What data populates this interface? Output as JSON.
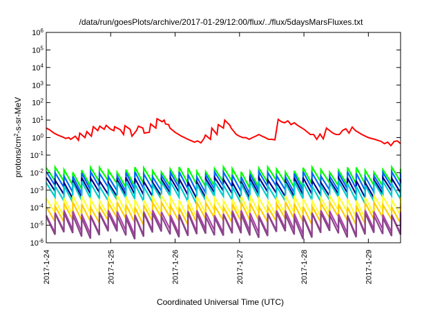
{
  "chart_data": {
    "type": "line",
    "title": "/data/run/goesPlots/archive/2017-01-29/12:00/flux/../flux/5daysMarsFluxes.txt",
    "xlabel": "Coordinated Universal Time (UTC)",
    "ylabel": {
      "base": "protons/cm",
      "sup": "2",
      "rest": "-s-sr-MeV"
    },
    "xlim": [
      0,
      5.5
    ],
    "ylim": [
      1e-06,
      1000000.0
    ],
    "yscale": "log",
    "grid": false,
    "xticks": [
      {
        "x": 0,
        "label": "2017-1-24"
      },
      {
        "x": 1,
        "label": "2017-1-25"
      },
      {
        "x": 2,
        "label": "2017-1-26"
      },
      {
        "x": 3,
        "label": "2017-1-27"
      },
      {
        "x": 4,
        "label": "2017-1-28"
      },
      {
        "x": 5,
        "label": "2017-1-29"
      }
    ],
    "yticks": [
      {
        "exp": -6
      },
      {
        "exp": -5
      },
      {
        "exp": -4
      },
      {
        "exp": -3
      },
      {
        "exp": -2
      },
      {
        "exp": -1
      },
      {
        "exp": 0
      },
      {
        "exp": 1
      },
      {
        "exp": 2
      },
      {
        "exp": 3
      },
      {
        "exp": 4
      },
      {
        "exp": 5
      },
      {
        "exp": 6
      }
    ],
    "series": [
      {
        "color": "#ff0000",
        "x": [
          0,
          0.05,
          0.12,
          0.18,
          0.25,
          0.3,
          0.35,
          0.38,
          0.45,
          0.5,
          0.52,
          0.6,
          0.63,
          0.7,
          0.73,
          0.8,
          0.83,
          0.9,
          0.93,
          1.0,
          1.05,
          1.06,
          1.15,
          1.2,
          1.22,
          1.3,
          1.33,
          1.4,
          1.43,
          1.5,
          1.52,
          1.6,
          1.62,
          1.7,
          1.72,
          1.8,
          1.83,
          1.85,
          1.9,
          1.92,
          2.0,
          2.1,
          2.2,
          2.3,
          2.35,
          2.4,
          2.45,
          2.47,
          2.55,
          2.57,
          2.65,
          2.67,
          2.75,
          2.77,
          2.85,
          2.87,
          2.95,
          3.0,
          3.05,
          3.1,
          3.15,
          3.2,
          3.25,
          3.3,
          3.35,
          3.4,
          3.45,
          3.5,
          3.55,
          3.6,
          3.65,
          3.7,
          3.75,
          3.8,
          3.85,
          3.9,
          4.0,
          4.1,
          4.15,
          4.2,
          4.25,
          4.3,
          4.35,
          4.4,
          4.45,
          4.5,
          4.55,
          4.6,
          4.65,
          4.7,
          4.75,
          4.8,
          4.9,
          5.0,
          5.1,
          5.2,
          5.25,
          5.3,
          5.35,
          5.4,
          5.45,
          5.5
        ],
        "y": [
          3.5,
          2.8,
          1.8,
          1.4,
          1.1,
          0.9,
          1.0,
          0.8,
          1.2,
          0.7,
          1.8,
          1.0,
          2.2,
          1.2,
          4.2,
          2.5,
          4.5,
          3.0,
          5.0,
          3.0,
          2.5,
          4.2,
          2.8,
          1.5,
          4.8,
          3.0,
          1.2,
          2.5,
          4.5,
          3.5,
          1.8,
          2.0,
          6.0,
          3.5,
          12.0,
          8.0,
          10.0,
          6.0,
          5.5,
          3.5,
          2.0,
          1.2,
          0.8,
          0.55,
          0.65,
          0.5,
          0.9,
          1.4,
          0.8,
          3.5,
          1.5,
          5.5,
          3.5,
          10.0,
          5.0,
          3.5,
          1.5,
          1.2,
          1.0,
          1.0,
          0.8,
          1.0,
          1.2,
          1.5,
          1.2,
          1.0,
          0.8,
          0.8,
          0.75,
          11.0,
          8.0,
          7.0,
          9.0,
          5.5,
          7.0,
          5.0,
          3.0,
          1.5,
          1.5,
          0.8,
          1.6,
          0.85,
          3.5,
          2.5,
          1.8,
          1.5,
          1.5,
          2.6,
          3.2,
          1.8,
          4.0,
          2.5,
          1.5,
          1.0,
          0.8,
          0.6,
          0.45,
          0.55,
          0.35,
          0.6,
          0.65,
          0.45
        ]
      },
      {
        "color": "#00ff00",
        "base": 0.006,
        "amp": 3.5
      },
      {
        "color": "#0066ff",
        "base": 0.003,
        "amp": 3.8
      },
      {
        "color": "#000088",
        "base": 0.0015,
        "amp": 3.6
      },
      {
        "color": "#00cccc",
        "base": 0.0008,
        "amp": 4.0
      },
      {
        "color": "#ffff33",
        "base": 0.00012,
        "amp": 4.2
      },
      {
        "color": "#ffcc00",
        "base": 5e-05,
        "amp": 4.2
      },
      {
        "color": "#aa44aa",
        "base": 1.2e-05,
        "amp": 6.0
      },
      {
        "color": "#884488",
        "base": 8e-06,
        "amp": 6.5
      }
    ]
  }
}
